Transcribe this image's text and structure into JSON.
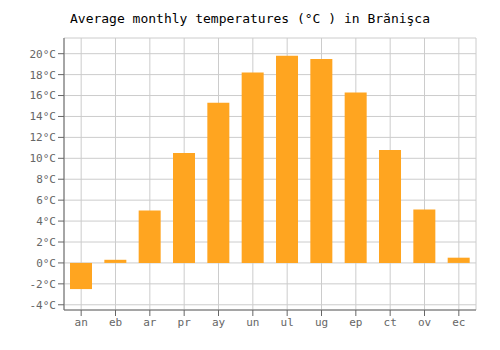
{
  "chart_data": {
    "type": "bar",
    "title": "Average monthly temperatures (°C ) in Brănişca",
    "categories": [
      "an",
      "eb",
      "ar",
      "pr",
      "ay",
      "un",
      "ul",
      "ug",
      "ep",
      "ct",
      "ov",
      "ec"
    ],
    "values": [
      -2.5,
      0.3,
      5.0,
      10.5,
      15.3,
      18.2,
      19.8,
      19.5,
      16.3,
      10.8,
      5.1,
      0.5
    ],
    "color": "#FFA520",
    "ylim": [
      -4.5,
      21.5
    ],
    "yticks": [
      {
        "value": -4,
        "label": "-4°C"
      },
      {
        "value": -2,
        "label": "-2°C"
      },
      {
        "value": 0,
        "label": "0°C"
      },
      {
        "value": 2,
        "label": "2°C"
      },
      {
        "value": 4,
        "label": "4°C"
      },
      {
        "value": 6,
        "label": "6°C"
      },
      {
        "value": 8,
        "label": "8°C"
      },
      {
        "value": 10,
        "label": "10°C"
      },
      {
        "value": 12,
        "label": "12°C"
      },
      {
        "value": 14,
        "label": "14°C"
      },
      {
        "value": 16,
        "label": "16°C"
      },
      {
        "value": 18,
        "label": "18°C"
      },
      {
        "value": 20,
        "label": "20°C"
      }
    ],
    "grid": true
  }
}
